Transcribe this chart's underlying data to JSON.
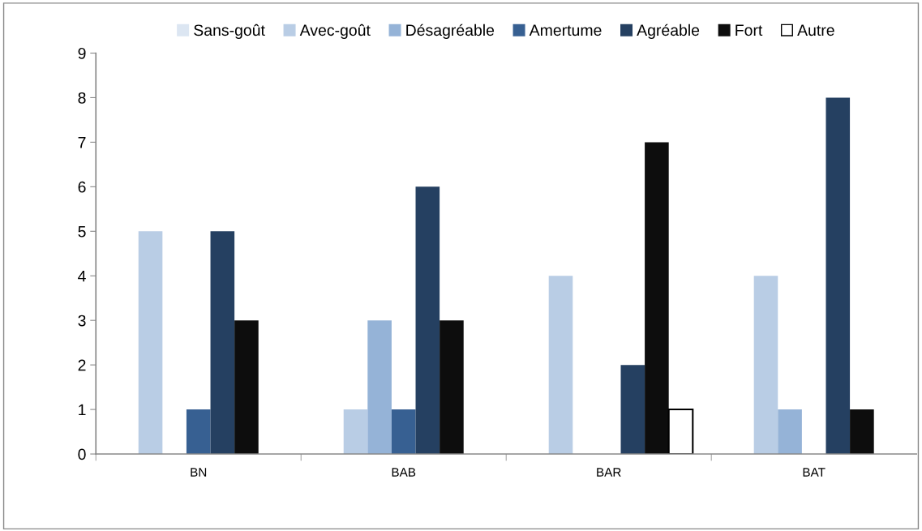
{
  "chart_data": {
    "type": "bar",
    "categories": [
      "BN",
      "BAB",
      "BAR",
      "BAT"
    ],
    "series": [
      {
        "name": "Sans-goût",
        "color": "#dce6f2",
        "values": [
          null,
          null,
          null,
          null
        ]
      },
      {
        "name": "Avec-goût",
        "color": "#b9cde5",
        "values": [
          5,
          1,
          4,
          4
        ]
      },
      {
        "name": "Désagréable",
        "color": "#95b3d7",
        "values": [
          null,
          3,
          null,
          1
        ]
      },
      {
        "name": "Amertume",
        "color": "#376092",
        "values": [
          1,
          1,
          null,
          null
        ]
      },
      {
        "name": "Agréable",
        "color": "#254061",
        "values": [
          5,
          6,
          2,
          8
        ]
      },
      {
        "name": "Fort",
        "color": "#0d0d0d",
        "values": [
          3,
          3,
          7,
          1
        ]
      },
      {
        "name": "Autre",
        "color": "#ffffff",
        "values": [
          null,
          null,
          1,
          null
        ]
      }
    ],
    "ylim": [
      0,
      9
    ],
    "yticks": [
      0,
      1,
      2,
      3,
      4,
      5,
      6,
      7,
      8,
      9
    ],
    "grid": false,
    "legend": "top"
  }
}
